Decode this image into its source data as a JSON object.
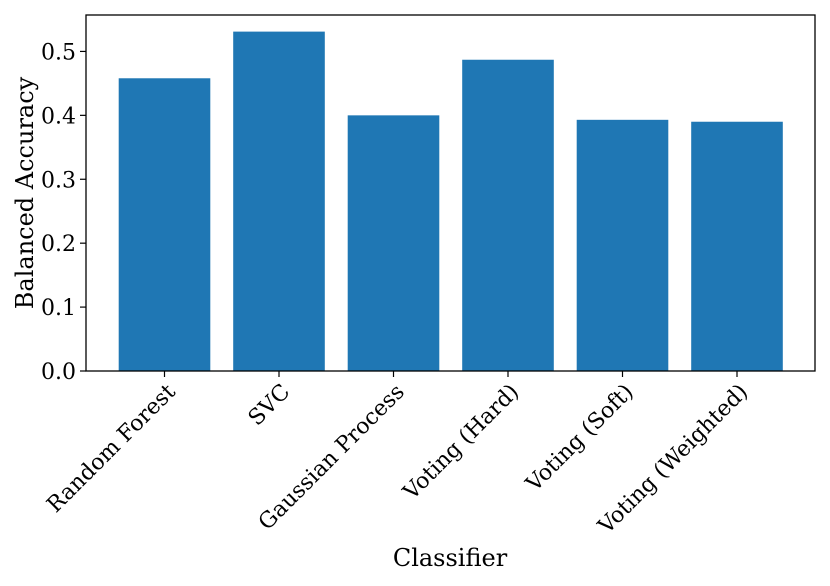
{
  "chart_data": {
    "type": "bar",
    "title": "",
    "xlabel": "Classifier",
    "ylabel": "Balanced Accuracy",
    "categories": [
      "Random Forest",
      "SVC",
      "Gaussian Process",
      "Voting (Hard)",
      "Voting (Soft)",
      "Voting (Weighted)"
    ],
    "values": [
      0.458,
      0.531,
      0.4,
      0.487,
      0.393,
      0.39
    ],
    "ylim": [
      0,
      0.557
    ],
    "yticks": [
      0.0,
      0.1,
      0.2,
      0.3,
      0.4,
      0.5
    ],
    "ytick_labels": [
      "0.0",
      "0.1",
      "0.2",
      "0.3",
      "0.4",
      "0.5"
    ],
    "bar_color": "#1f77b4",
    "grid": false,
    "legend": "none"
  }
}
